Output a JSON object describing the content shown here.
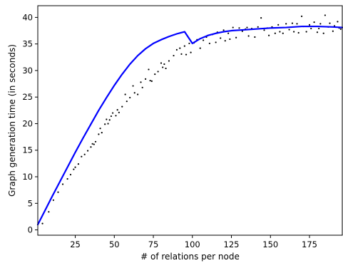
{
  "chart_data": {
    "type": "scatter",
    "title": "",
    "xlabel": "# of relations per node",
    "ylabel": "Graph generation time (in seconds)",
    "xlim": [
      1,
      196
    ],
    "ylim": [
      -1,
      42.2
    ],
    "xticks": [
      25,
      50,
      75,
      100,
      125,
      150,
      175
    ],
    "yticks": [
      0,
      5,
      10,
      15,
      20,
      25,
      30,
      35,
      40
    ],
    "grid": false,
    "legend": "none",
    "series": [
      {
        "type": "scatter",
        "color": "#000000",
        "points": [
          [
            4,
            1.2
          ],
          [
            8,
            3.4
          ],
          [
            11,
            5.6
          ],
          [
            14,
            7.1
          ],
          [
            17,
            8.6
          ],
          [
            20,
            9.6
          ],
          [
            22,
            10.4
          ],
          [
            24,
            11.4
          ],
          [
            25,
            11.8
          ],
          [
            27,
            12.4
          ],
          [
            29,
            13.8
          ],
          [
            31,
            14.2
          ],
          [
            33,
            14.9
          ],
          [
            35,
            15.6
          ],
          [
            36,
            16.2
          ],
          [
            37,
            16.1
          ],
          [
            38,
            16.6
          ],
          [
            40,
            18.0
          ],
          [
            41,
            19.1
          ],
          [
            42,
            18.3
          ],
          [
            44,
            19.9
          ],
          [
            45,
            20.8
          ],
          [
            46,
            20.0
          ],
          [
            47,
            20.7
          ],
          [
            48,
            21.4
          ],
          [
            49,
            22.0
          ],
          [
            51,
            21.5
          ],
          [
            52,
            22.6
          ],
          [
            53,
            22.1
          ],
          [
            55,
            23.2
          ],
          [
            57,
            25.5
          ],
          [
            58,
            24.2
          ],
          [
            60,
            24.9
          ],
          [
            62,
            27.1
          ],
          [
            63,
            25.8
          ],
          [
            65,
            25.5
          ],
          [
            67,
            27.8
          ],
          [
            68,
            26.8
          ],
          [
            70,
            28.4
          ],
          [
            72,
            30.2
          ],
          [
            73,
            28.1
          ],
          [
            74,
            28.0
          ],
          [
            76,
            29.3
          ],
          [
            78,
            29.8
          ],
          [
            80,
            31.4
          ],
          [
            81,
            30.6
          ],
          [
            82,
            31.2
          ],
          [
            83,
            30.4
          ],
          [
            85,
            31.8
          ],
          [
            88,
            32.8
          ],
          [
            90,
            33.9
          ],
          [
            92,
            34.2
          ],
          [
            93,
            33.1
          ],
          [
            95,
            34.6
          ],
          [
            96,
            33.0
          ],
          [
            98,
            35.1
          ],
          [
            99,
            33.4
          ],
          [
            101,
            35.2
          ],
          [
            103,
            35.8
          ],
          [
            105,
            34.2
          ],
          [
            107,
            35.7
          ],
          [
            109,
            36.3
          ],
          [
            110,
            36.6
          ],
          [
            111,
            35.1
          ],
          [
            113,
            36.8
          ],
          [
            115,
            35.3
          ],
          [
            116,
            37.2
          ],
          [
            118,
            36.1
          ],
          [
            120,
            37.6
          ],
          [
            121,
            35.6
          ],
          [
            123,
            37.0
          ],
          [
            124,
            35.9
          ],
          [
            126,
            38.1
          ],
          [
            128,
            36.2
          ],
          [
            130,
            38.0
          ],
          [
            132,
            37.4
          ],
          [
            134,
            37.8
          ],
          [
            135,
            38.1
          ],
          [
            136,
            36.5
          ],
          [
            138,
            37.9
          ],
          [
            140,
            36.3
          ],
          [
            142,
            38.2
          ],
          [
            144,
            39.9
          ],
          [
            146,
            37.6
          ],
          [
            148,
            38.0
          ],
          [
            149,
            36.6
          ],
          [
            151,
            38.2
          ],
          [
            153,
            37.0
          ],
          [
            155,
            38.6
          ],
          [
            156,
            37.3
          ],
          [
            158,
            37.0
          ],
          [
            160,
            38.8
          ],
          [
            162,
            37.7
          ],
          [
            164,
            38.9
          ],
          [
            165,
            37.3
          ],
          [
            167,
            38.8
          ],
          [
            168,
            37.1
          ],
          [
            170,
            40.2
          ],
          [
            171,
            38.3
          ],
          [
            173,
            37.3
          ],
          [
            175,
            38.6
          ],
          [
            176,
            37.9
          ],
          [
            178,
            39.1
          ],
          [
            180,
            37.2
          ],
          [
            181,
            37.9
          ],
          [
            182,
            38.8
          ],
          [
            184,
            37.0
          ],
          [
            185,
            40.4
          ],
          [
            187,
            38.2
          ],
          [
            188,
            38.9
          ],
          [
            190,
            37.4
          ],
          [
            191,
            38.4
          ],
          [
            193,
            39.2
          ],
          [
            194,
            38.0
          ],
          [
            195,
            37.8
          ]
        ]
      },
      {
        "type": "line",
        "color": "#0000ff",
        "points": [
          [
            1,
            1.0
          ],
          [
            5,
            3.3
          ],
          [
            10,
            6.2
          ],
          [
            15,
            9.0
          ],
          [
            20,
            11.8
          ],
          [
            25,
            14.6
          ],
          [
            30,
            17.3
          ],
          [
            35,
            19.9
          ],
          [
            40,
            22.5
          ],
          [
            45,
            24.9
          ],
          [
            50,
            27.2
          ],
          [
            55,
            29.3
          ],
          [
            60,
            31.2
          ],
          [
            65,
            32.8
          ],
          [
            70,
            34.1
          ],
          [
            75,
            35.1
          ],
          [
            80,
            35.8
          ],
          [
            85,
            36.4
          ],
          [
            90,
            36.9
          ],
          [
            95,
            37.3
          ],
          [
            100,
            35.1
          ],
          [
            105,
            36.0
          ],
          [
            110,
            36.6
          ],
          [
            115,
            37.0
          ],
          [
            120,
            37.3
          ],
          [
            125,
            37.5
          ],
          [
            130,
            37.6
          ],
          [
            140,
            37.8
          ],
          [
            150,
            38.0
          ],
          [
            160,
            38.1
          ],
          [
            170,
            38.3
          ],
          [
            180,
            38.3
          ],
          [
            190,
            38.2
          ],
          [
            196,
            38.1
          ]
        ]
      }
    ]
  }
}
